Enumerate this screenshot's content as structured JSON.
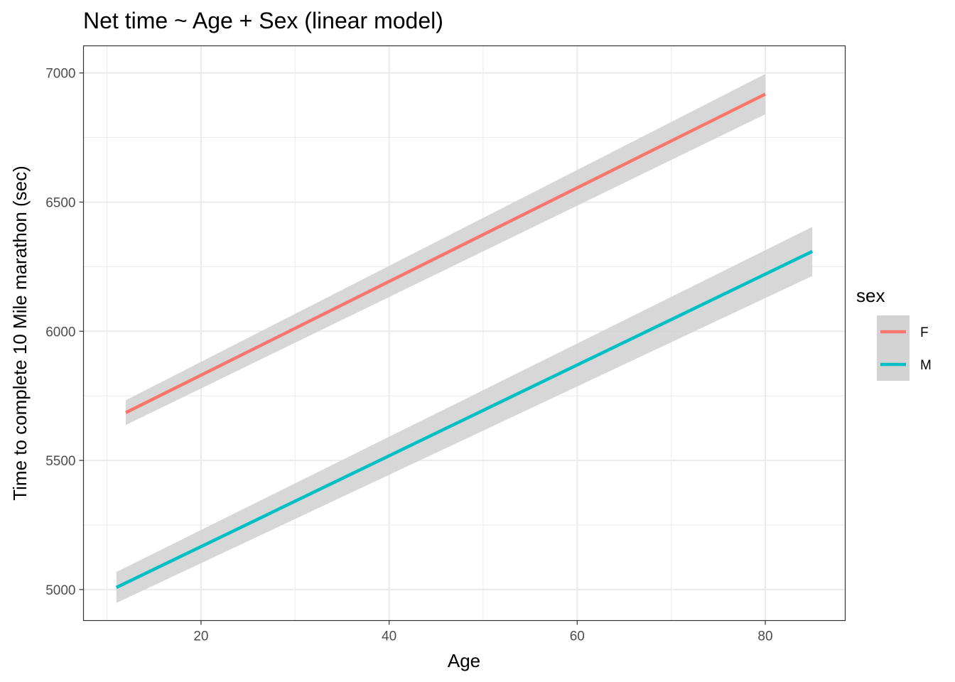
{
  "chart_data": {
    "type": "line",
    "title": "Net time ~ Age + Sex (linear model)",
    "xlabel": "Age",
    "ylabel": "Time to complete 10 Mile marathon (sec)",
    "xlim": [
      7.5,
      88.5
    ],
    "ylim": [
      4880,
      7105
    ],
    "x_ticks": [
      20,
      40,
      60,
      80
    ],
    "y_ticks": [
      5000,
      5500,
      6000,
      6500,
      7000
    ],
    "x_minor": [
      10,
      30,
      50,
      70
    ],
    "y_minor": [
      5250,
      5750,
      6250,
      6750
    ],
    "grid": true,
    "legend": {
      "title": "sex",
      "position": "right"
    },
    "series": [
      {
        "name": "F",
        "color": "#F8766D",
        "x": [
          12,
          80
        ],
        "y": [
          5685,
          6918
        ],
        "ci_low": [
          5637,
          6840
        ],
        "ci_high": [
          5733,
          6996
        ]
      },
      {
        "name": "M",
        "color": "#00BFC4",
        "x": [
          11,
          85
        ],
        "y": [
          5008,
          6309
        ],
        "ci_low": [
          4948,
          6214
        ],
        "ci_high": [
          5068,
          6404
        ]
      }
    ],
    "ribbon_color": "#d3d3d3"
  }
}
